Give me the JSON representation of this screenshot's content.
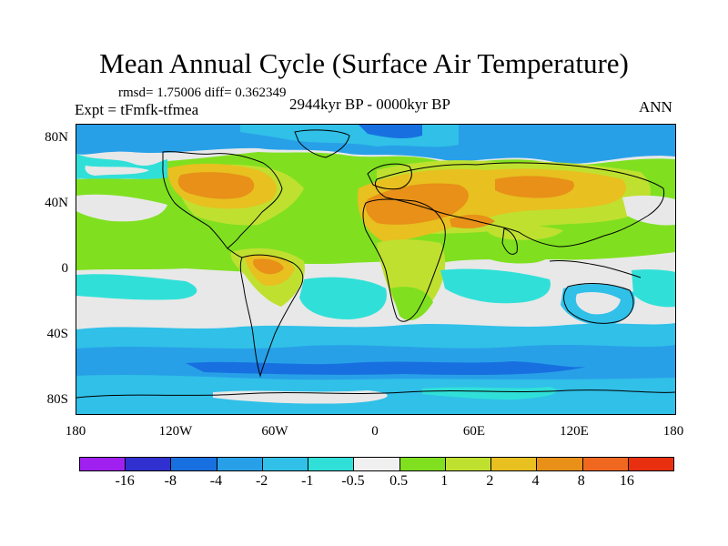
{
  "title": "Mean Annual Cycle (Surface Air Temperature)",
  "stats": "rmsd= 1.75006 diff= 0.362349",
  "experiment": "Expt = tFmfk-tfmea",
  "period": "2944kyr BP - 0000kyr BP",
  "season": "ANN",
  "axes": {
    "y_ticks": [
      "80N",
      "40N",
      "0",
      "40S",
      "80S"
    ],
    "x_ticks": [
      "180",
      "120W",
      "60W",
      "0",
      "60E",
      "120E",
      "180"
    ]
  },
  "colorbar": {
    "levels": [
      "-16",
      "-8",
      "-4",
      "-2",
      "-1",
      "-0.5",
      "0.5",
      "1",
      "2",
      "4",
      "8",
      "16"
    ],
    "colors": [
      "#a020f0",
      "#3030d0",
      "#1870e0",
      "#28a0e8",
      "#30c0e8",
      "#30e0d8",
      "#f0f0f0",
      "#80e020",
      "#c0e030",
      "#e8c020",
      "#e89018",
      "#f06820",
      "#e83010"
    ]
  },
  "palette": {
    "neg_strong": "#1870e0",
    "neg_mid": "#28a0e8",
    "neg_light": "#30c0e8",
    "neg_faint": "#30e0d8",
    "neutral": "#e8e8e8",
    "pos_faint": "#80e020",
    "pos_light": "#c0e030",
    "pos_mid": "#e8c020",
    "pos_strong": "#e89018"
  }
}
